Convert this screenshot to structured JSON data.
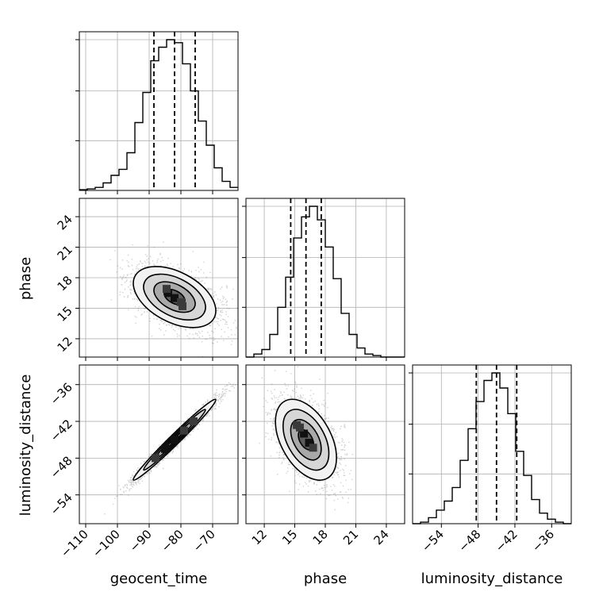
{
  "chart_data": {
    "type": "corner",
    "parameters": [
      {
        "name": "geocent_time",
        "range": [
          -112,
          -62
        ],
        "ticks": [
          -110,
          -100,
          -90,
          -80,
          -70
        ],
        "tick_labels": [
          "−110",
          "−100",
          "−90",
          "−80",
          "−70"
        ],
        "quantiles": [
          -88.5,
          -82.0,
          -75.5
        ]
      },
      {
        "name": "phase",
        "range": [
          10.2,
          25.8
        ],
        "ticks": [
          12,
          15,
          18,
          21,
          24
        ],
        "tick_labels": [
          "12",
          "15",
          "18",
          "21",
          "24"
        ],
        "quantiles": [
          14.6,
          16.1,
          17.6
        ]
      },
      {
        "name": "luminosity_distance",
        "range": [
          -58.7,
          -32.8
        ],
        "ticks": [
          -54,
          -48,
          -42,
          -36
        ],
        "tick_labels": [
          "−54",
          "−48",
          "−42",
          "−36"
        ],
        "quantiles": [
          -48.3,
          -45.0,
          -41.7
        ]
      }
    ],
    "histograms": [
      {
        "param": "geocent_time",
        "bin_edges": [
          -112,
          -109.5,
          -107,
          -104.5,
          -102,
          -99.5,
          -97,
          -94.5,
          -92,
          -89.5,
          -87,
          -84.5,
          -82,
          -79.5,
          -77,
          -74.5,
          -72,
          -69.5,
          -67,
          -64.5,
          -62
        ],
        "counts": [
          0.005,
          0.01,
          0.02,
          0.05,
          0.1,
          0.14,
          0.25,
          0.45,
          0.65,
          0.86,
          0.95,
          1.0,
          0.98,
          0.84,
          0.66,
          0.46,
          0.3,
          0.15,
          0.06,
          0.02
        ]
      },
      {
        "param": "phase",
        "bin_edges": [
          10.2,
          10.98,
          11.76,
          12.54,
          13.32,
          14.1,
          14.88,
          15.66,
          16.44,
          17.22,
          18.0,
          18.78,
          19.56,
          20.34,
          21.12,
          21.9,
          22.68,
          23.46,
          24.24,
          25.02,
          25.8
        ],
        "counts": [
          0.0,
          0.02,
          0.05,
          0.15,
          0.33,
          0.53,
          0.79,
          0.93,
          1.0,
          0.91,
          0.73,
          0.52,
          0.29,
          0.15,
          0.06,
          0.02,
          0.01,
          0.0,
          0.0,
          0.0
        ]
      },
      {
        "param": "luminosity_distance",
        "bin_edges": [
          -58.7,
          -57.405,
          -56.11,
          -54.815,
          -53.52,
          -52.225,
          -50.93,
          -49.635,
          -48.34,
          -47.045,
          -45.75,
          -44.455,
          -43.16,
          -41.865,
          -40.57,
          -39.275,
          -37.98,
          -36.685,
          -35.39,
          -34.095,
          -32.8
        ],
        "counts": [
          0.0,
          0.01,
          0.04,
          0.09,
          0.15,
          0.24,
          0.42,
          0.63,
          0.81,
          0.95,
          1.0,
          0.9,
          0.73,
          0.48,
          0.32,
          0.16,
          0.07,
          0.03,
          0.01,
          0.0
        ]
      }
    ],
    "joint": [
      {
        "x": "geocent_time",
        "y": "phase",
        "mean": [
          -82.0,
          16.1
        ],
        "std": [
          6.5,
          1.5
        ],
        "rho": -0.45,
        "densest_cells": [
          [
            -84.0,
            16.5
          ],
          [
            -82.0,
            16.0
          ],
          [
            -80.0,
            15.6
          ],
          [
            -84.5,
            16.9
          ],
          [
            -79.5,
            15.2
          ]
        ]
      },
      {
        "x": "geocent_time",
        "y": "luminosity_distance",
        "mean": [
          -82.0,
          -45.0
        ],
        "std": [
          6.5,
          3.3
        ],
        "rho": 0.985,
        "densest_cells": [
          [
            -85.0,
            -46.5
          ],
          [
            -82.0,
            -45.0
          ],
          [
            -79.0,
            -43.5
          ],
          [
            -88.0,
            -48.0
          ],
          [
            -76.0,
            -42.0
          ]
        ]
      },
      {
        "x": "phase",
        "y": "luminosity_distance",
        "mean": [
          16.1,
          -45.0
        ],
        "std": [
          1.5,
          3.3
        ],
        "rho": -0.45,
        "densest_cells": [
          [
            15.9,
            -44.0
          ],
          [
            16.4,
            -45.5
          ],
          [
            15.5,
            -43.0
          ],
          [
            16.8,
            -46.3
          ],
          [
            15.2,
            -42.6
          ]
        ]
      }
    ],
    "contour_levels_sigma": [
      0.5,
      1.0,
      1.5,
      2.0
    ],
    "grid": true
  }
}
